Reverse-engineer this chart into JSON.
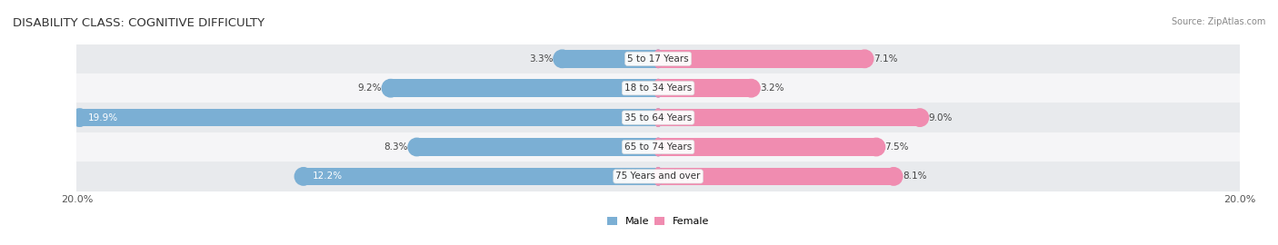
{
  "title": "DISABILITY CLASS: COGNITIVE DIFFICULTY",
  "source": "Source: ZipAtlas.com",
  "categories": [
    "5 to 17 Years",
    "18 to 34 Years",
    "35 to 64 Years",
    "65 to 74 Years",
    "75 Years and over"
  ],
  "male_values": [
    3.3,
    9.2,
    19.9,
    8.3,
    12.2
  ],
  "female_values": [
    7.1,
    3.2,
    9.0,
    7.5,
    8.1
  ],
  "max_val": 20.0,
  "male_color": "#7bafd4",
  "female_color": "#f08cb0",
  "male_label": "Male",
  "female_label": "Female",
  "title_fontsize": 9.5,
  "source_fontsize": 7,
  "label_fontsize": 7.5,
  "axis_fontsize": 8,
  "row_colors": [
    "#e8eaed",
    "#f5f5f7",
    "#e8eaed",
    "#f5f5f7",
    "#e8eaed"
  ]
}
